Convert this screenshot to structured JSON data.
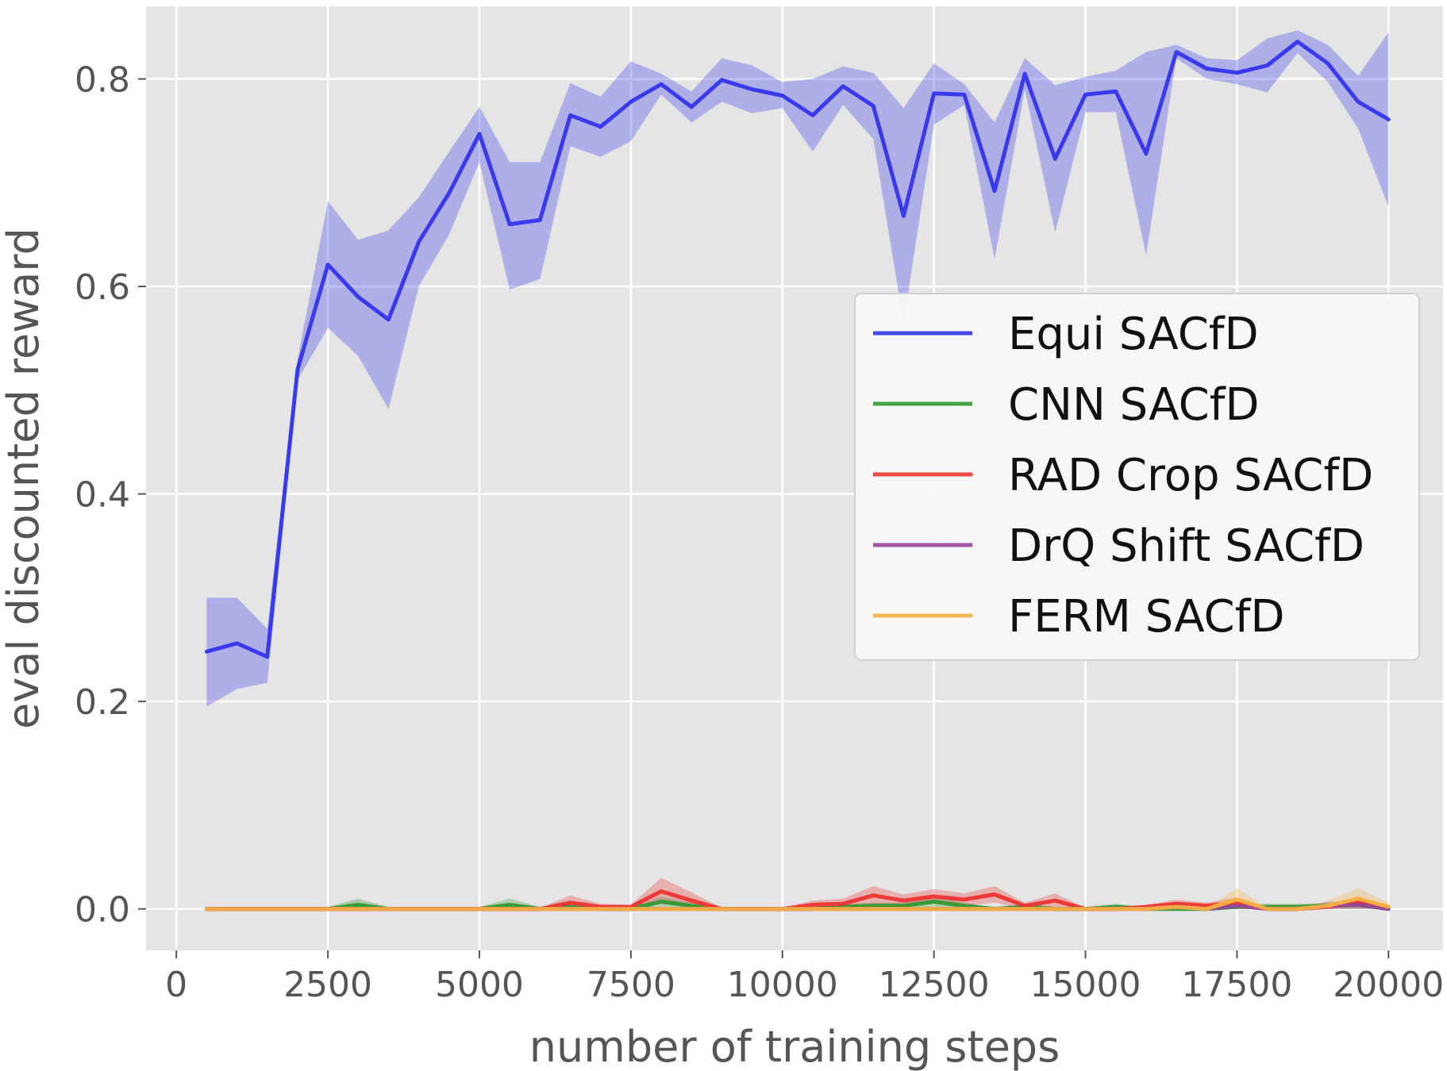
{
  "chart_data": {
    "type": "line",
    "xlabel": "number of training steps",
    "ylabel": "eval discounted reward",
    "xlim": [
      -500,
      20900
    ],
    "ylim": [
      -0.04,
      0.87
    ],
    "xticks": [
      0,
      2500,
      5000,
      7500,
      10000,
      12500,
      15000,
      17500,
      20000
    ],
    "xtick_labels": [
      "0",
      "2500",
      "5000",
      "7500",
      "10000",
      "12500",
      "15000",
      "17500",
      "20000"
    ],
    "yticks": [
      0.0,
      0.2,
      0.4,
      0.6,
      0.8
    ],
    "ytick_labels": [
      "0.0",
      "0.2",
      "0.4",
      "0.6",
      "0.8"
    ],
    "grid": true,
    "legend_position": "center-right",
    "x": [
      500,
      1000,
      1500,
      2000,
      2500,
      3000,
      3500,
      4000,
      4500,
      5000,
      5500,
      6000,
      6500,
      7000,
      7500,
      8000,
      8500,
      9000,
      9500,
      10000,
      10500,
      11000,
      11500,
      12000,
      12500,
      13000,
      13500,
      14000,
      14500,
      15000,
      15500,
      16000,
      16500,
      17000,
      17500,
      18000,
      18500,
      19000,
      19500,
      20000
    ],
    "series": [
      {
        "name": "Equi SACfD",
        "color": "#3333ee",
        "values": [
          0.248,
          0.256,
          0.243,
          0.52,
          0.621,
          0.59,
          0.568,
          0.643,
          0.69,
          0.747,
          0.66,
          0.664,
          0.765,
          0.754,
          0.778,
          0.795,
          0.773,
          0.799,
          0.79,
          0.784,
          0.765,
          0.793,
          0.774,
          0.668,
          0.786,
          0.785,
          0.692,
          0.805,
          0.723,
          0.785,
          0.788,
          0.728,
          0.826,
          0.81,
          0.806,
          0.813,
          0.836,
          0.815,
          0.778,
          0.761
        ],
        "lower": [
          0.195,
          0.212,
          0.218,
          0.51,
          0.56,
          0.533,
          0.482,
          0.6,
          0.65,
          0.72,
          0.597,
          0.607,
          0.735,
          0.725,
          0.74,
          0.785,
          0.758,
          0.778,
          0.767,
          0.772,
          0.73,
          0.775,
          0.742,
          0.565,
          0.756,
          0.775,
          0.626,
          0.79,
          0.652,
          0.768,
          0.768,
          0.63,
          0.82,
          0.8,
          0.795,
          0.787,
          0.825,
          0.797,
          0.752,
          0.677
        ],
        "upper": [
          0.3,
          0.3,
          0.27,
          0.53,
          0.682,
          0.645,
          0.654,
          0.686,
          0.73,
          0.773,
          0.72,
          0.72,
          0.796,
          0.783,
          0.817,
          0.805,
          0.788,
          0.82,
          0.813,
          0.797,
          0.8,
          0.812,
          0.806,
          0.772,
          0.815,
          0.795,
          0.758,
          0.82,
          0.794,
          0.802,
          0.808,
          0.826,
          0.833,
          0.82,
          0.818,
          0.839,
          0.847,
          0.833,
          0.803,
          0.845
        ]
      },
      {
        "name": "CNN SACfD",
        "color": "#339933",
        "values": [
          0,
          0,
          0,
          0,
          0,
          0.004,
          0,
          0,
          0,
          0,
          0.004,
          0,
          0.002,
          0,
          0,
          0.007,
          0.003,
          0,
          0,
          0,
          0,
          0.002,
          0.003,
          0.003,
          0.007,
          0.003,
          0,
          0.002,
          0,
          0,
          0.002,
          0,
          0,
          0,
          0.002,
          0.002,
          0.002,
          0.003,
          0.004,
          0
        ],
        "lower": [
          0,
          0,
          0,
          0,
          0,
          0,
          0,
          0,
          0,
          0,
          0,
          0,
          0,
          0,
          0,
          0.002,
          0,
          0,
          0,
          0,
          0,
          0,
          0,
          0,
          0.002,
          0,
          0,
          0,
          0,
          0,
          0,
          0,
          0,
          0,
          0,
          0,
          0,
          0,
          0,
          0
        ],
        "upper": [
          0.002,
          0.002,
          0.002,
          0.002,
          0.002,
          0.01,
          0.002,
          0.002,
          0.002,
          0.002,
          0.01,
          0.002,
          0.005,
          0.002,
          0.002,
          0.012,
          0.006,
          0.002,
          0.002,
          0.002,
          0.002,
          0.005,
          0.006,
          0.006,
          0.012,
          0.006,
          0.002,
          0.005,
          0.002,
          0.002,
          0.005,
          0.002,
          0.002,
          0.002,
          0.005,
          0.005,
          0.005,
          0.006,
          0.008,
          0.002
        ]
      },
      {
        "name": "RAD Crop SACfD",
        "color": "#ee3333",
        "values": [
          0,
          0,
          0,
          0,
          0,
          0,
          0,
          0,
          0,
          0,
          0,
          0,
          0.006,
          0.002,
          0.002,
          0.017,
          0.008,
          0,
          0,
          0,
          0.004,
          0.005,
          0.013,
          0.008,
          0.012,
          0.009,
          0.014,
          0.003,
          0.008,
          0,
          0,
          0.002,
          0.005,
          0.003,
          0.006,
          0,
          0,
          0.002,
          0.006,
          0.002
        ],
        "lower": [
          0,
          0,
          0,
          0,
          0,
          0,
          0,
          0,
          0,
          0,
          0,
          0,
          0.001,
          0,
          0,
          0.005,
          0.002,
          0,
          0,
          0,
          0,
          0.001,
          0.005,
          0.002,
          0.005,
          0.003,
          0.006,
          0,
          0.002,
          0,
          0,
          0,
          0.001,
          0,
          0.001,
          0,
          0,
          0,
          0.001,
          0
        ],
        "upper": [
          0.001,
          0.001,
          0.001,
          0.001,
          0.001,
          0.001,
          0.001,
          0.001,
          0.001,
          0.001,
          0.001,
          0.001,
          0.013,
          0.005,
          0.004,
          0.03,
          0.016,
          0.001,
          0.001,
          0.001,
          0.008,
          0.01,
          0.022,
          0.014,
          0.019,
          0.015,
          0.022,
          0.006,
          0.015,
          0.001,
          0.001,
          0.004,
          0.009,
          0.006,
          0.011,
          0.001,
          0.001,
          0.004,
          0.011,
          0.004
        ]
      },
      {
        "name": "DrQ Shift SACfD",
        "color": "#994499",
        "values": [
          0,
          0,
          0,
          0,
          0,
          0,
          0,
          0,
          0,
          0,
          0,
          0,
          0,
          0,
          0,
          0,
          0,
          0,
          0,
          0,
          0,
          0,
          0,
          0,
          0,
          0,
          0,
          0,
          0,
          0,
          0,
          0,
          0.002,
          0,
          0.003,
          0,
          0,
          0.003,
          0.004,
          0
        ],
        "lower": [
          0,
          0,
          0,
          0,
          0,
          0,
          0,
          0,
          0,
          0,
          0,
          0,
          0,
          0,
          0,
          0,
          0,
          0,
          0,
          0,
          0,
          0,
          0,
          0,
          0,
          0,
          0,
          0,
          0,
          0,
          0,
          0,
          0,
          0,
          0,
          0,
          0,
          0,
          0,
          0
        ],
        "upper": [
          0.001,
          0.001,
          0.001,
          0.001,
          0.001,
          0.001,
          0.001,
          0.001,
          0.001,
          0.001,
          0.001,
          0.001,
          0.001,
          0.001,
          0.001,
          0.001,
          0.001,
          0.001,
          0.001,
          0.001,
          0.001,
          0.001,
          0.001,
          0.001,
          0.001,
          0.001,
          0.001,
          0.001,
          0.001,
          0.001,
          0.001,
          0.001,
          0.005,
          0.001,
          0.007,
          0.001,
          0.001,
          0.007,
          0.008,
          0.001
        ]
      },
      {
        "name": "FERM SACfD",
        "color": "#f5b041",
        "values": [
          0,
          0,
          0,
          0,
          0,
          0,
          0,
          0,
          0,
          0,
          0,
          0,
          0,
          0,
          0,
          0,
          0,
          0,
          0,
          0,
          0,
          0,
          0,
          0,
          0,
          0,
          0,
          0,
          0,
          0,
          0,
          0,
          0.002,
          0,
          0.009,
          0,
          0,
          0.003,
          0.01,
          0.002
        ],
        "lower": [
          0,
          0,
          0,
          0,
          0,
          0,
          0,
          0,
          0,
          0,
          0,
          0,
          0,
          0,
          0,
          0,
          0,
          0,
          0,
          0,
          0,
          0,
          0,
          0,
          0,
          0,
          0,
          0,
          0,
          0,
          0,
          0,
          0,
          0,
          0.002,
          0,
          0,
          0,
          0.002,
          0
        ],
        "upper": [
          0.001,
          0.001,
          0.001,
          0.001,
          0.001,
          0.001,
          0.001,
          0.001,
          0.001,
          0.001,
          0.001,
          0.001,
          0.001,
          0.001,
          0.001,
          0.001,
          0.001,
          0.001,
          0.001,
          0.001,
          0.001,
          0.001,
          0.001,
          0.001,
          0.001,
          0.001,
          0.001,
          0.001,
          0.001,
          0.001,
          0.001,
          0.001,
          0.006,
          0.001,
          0.02,
          0.001,
          0.001,
          0.008,
          0.02,
          0.006
        ]
      }
    ]
  }
}
